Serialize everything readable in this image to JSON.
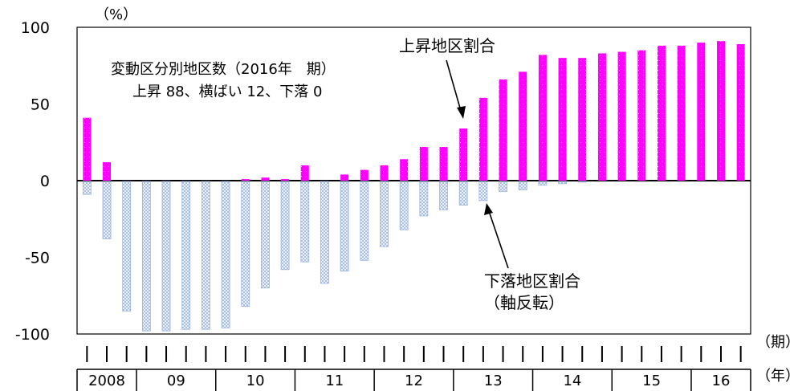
{
  "chart_data": {
    "type": "bar",
    "y_unit_label": "（%）",
    "ylim": [
      -100,
      100
    ],
    "yticks": [
      100,
      50,
      0,
      -50,
      -100
    ],
    "grid": false,
    "series": [
      {
        "name": "上昇地区割合",
        "color": "#ff00ff",
        "values": [
          41,
          12,
          0,
          0,
          0,
          0,
          0,
          0,
          1,
          2,
          1,
          10,
          0,
          4,
          7,
          10,
          14,
          22,
          22,
          34,
          54,
          66,
          71,
          82,
          80,
          80,
          83,
          84,
          85,
          88,
          88,
          90,
          91,
          89
        ]
      },
      {
        "name": "下落地区割合",
        "name_line2": "（軸反転）",
        "color": "#9ab3e0",
        "values": [
          -9,
          -38,
          -85,
          -98,
          -98,
          -97,
          -97,
          -96,
          -82,
          -70,
          -58,
          -53,
          -67,
          -59,
          -52,
          -43,
          -32,
          -23,
          -19,
          -16,
          -13,
          -7,
          -6,
          -3,
          -2,
          -1,
          0,
          0,
          0,
          0,
          0,
          0,
          0,
          0
        ]
      }
    ],
    "years": [
      {
        "label": "2008",
        "quarters": 3
      },
      {
        "label": "09",
        "quarters": 4
      },
      {
        "label": "10",
        "quarters": 4
      },
      {
        "label": "11",
        "quarters": 4
      },
      {
        "label": "12",
        "quarters": 4
      },
      {
        "label": "13",
        "quarters": 4
      },
      {
        "label": "14",
        "quarters": 4
      },
      {
        "label": "15",
        "quarters": 4
      },
      {
        "label": "16",
        "quarters": 3
      }
    ],
    "x_label_period": "（期）",
    "x_label_year": "（年）",
    "annotation_lines": [
      "変動区分別地区数（2016年　期）",
      "上昇 88、横ばい 12、下落 0"
    ]
  }
}
